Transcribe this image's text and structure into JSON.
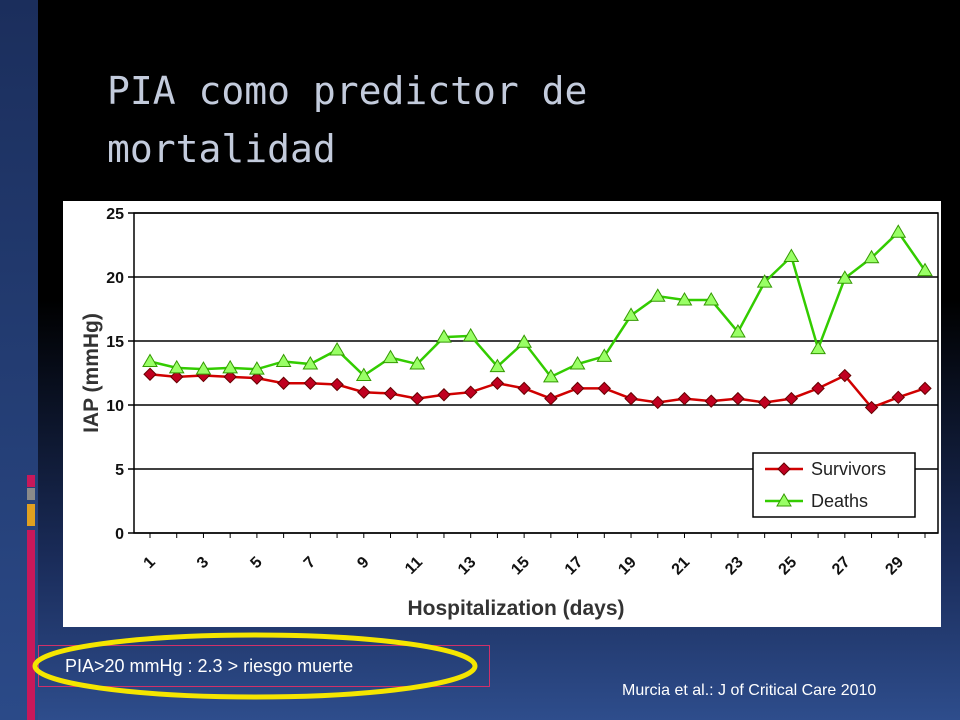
{
  "slide": {
    "title": "PIA como predictor de mortalidad",
    "note": "PIA>20 mmHg : 2.3 > riesgo muerte",
    "citation": "Murcia et al.: J of Critical Care 2010"
  },
  "chart_data": {
    "type": "line",
    "x_label": "Hospitalization (days)",
    "y_label": "IAP (mmHg)",
    "categories": [
      "1",
      null,
      "3",
      null,
      "5",
      null,
      "7",
      null,
      "9",
      null,
      "11",
      null,
      "13",
      null,
      "15",
      null,
      "17",
      null,
      "19",
      null,
      "21",
      null,
      "23",
      null,
      "25",
      null,
      "27",
      null,
      "29",
      null
    ],
    "series": [
      {
        "name": "Survivors",
        "color": "#d00000",
        "marker_color": "#c00020",
        "marker": "diamond",
        "values": [
          12.4,
          12.2,
          12.3,
          12.2,
          12.1,
          11.7,
          11.7,
          11.6,
          11.0,
          10.9,
          10.5,
          10.8,
          11.0,
          11.7,
          11.3,
          10.5,
          11.3,
          11.3,
          10.5,
          10.2,
          10.5,
          10.3,
          10.5,
          10.2,
          10.5,
          11.3,
          12.3,
          9.8,
          10.6,
          11.3
        ]
      },
      {
        "name": "Deaths",
        "color": "#33cc00",
        "marker_color": "#99ff66",
        "marker": "triangle",
        "values": [
          13.4,
          12.9,
          12.8,
          12.9,
          12.8,
          13.4,
          13.2,
          14.3,
          12.3,
          13.7,
          13.2,
          15.3,
          15.4,
          13.0,
          14.9,
          12.2,
          13.2,
          13.8,
          17.0,
          18.5,
          18.2,
          18.2,
          15.7,
          19.6,
          21.6,
          14.4,
          19.9,
          21.5,
          23.5,
          20.5
        ]
      }
    ],
    "ylim": [
      0,
      25
    ],
    "yticks": [
      0,
      5,
      10,
      15,
      20,
      25
    ],
    "grid": true,
    "legend": "lower right"
  }
}
